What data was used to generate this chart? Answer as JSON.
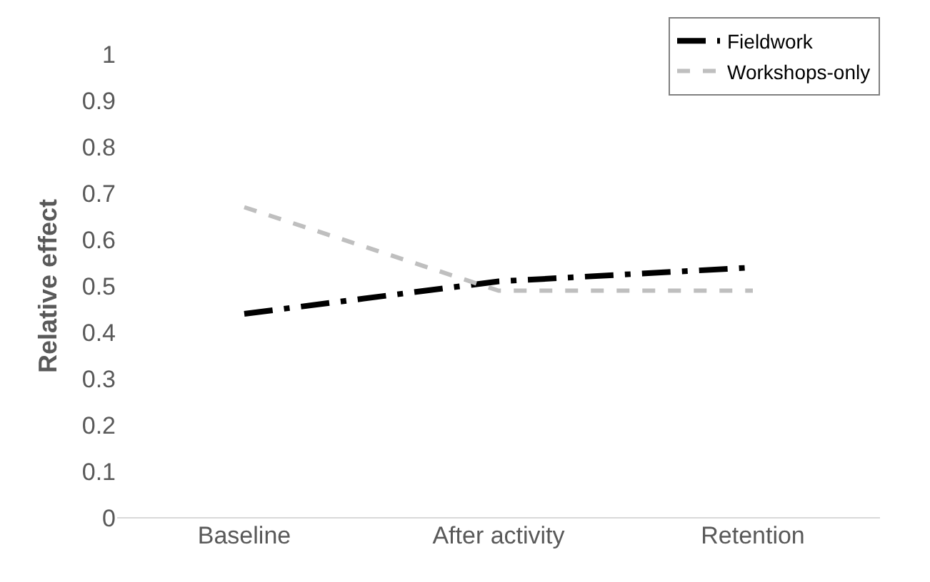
{
  "chart_data": {
    "type": "line",
    "ylabel": "Relative effect",
    "categories": [
      "Baseline",
      "After activity",
      "Retention"
    ],
    "series": [
      {
        "name": "Fieldwork",
        "color": "#000000",
        "line_style": "dashdot",
        "values": [
          0.44,
          0.51,
          0.54
        ]
      },
      {
        "name": "Workshops-only",
        "color": "#bfbfbf",
        "line_style": "dashed",
        "values": [
          0.67,
          0.49,
          0.49
        ]
      }
    ],
    "ylim": [
      0,
      1
    ],
    "yticks": [
      0,
      0.1,
      0.2,
      0.3,
      0.4,
      0.5,
      0.6,
      0.7,
      0.8,
      0.9,
      1
    ],
    "grid": false,
    "legend": "top right",
    "marker": "none"
  }
}
